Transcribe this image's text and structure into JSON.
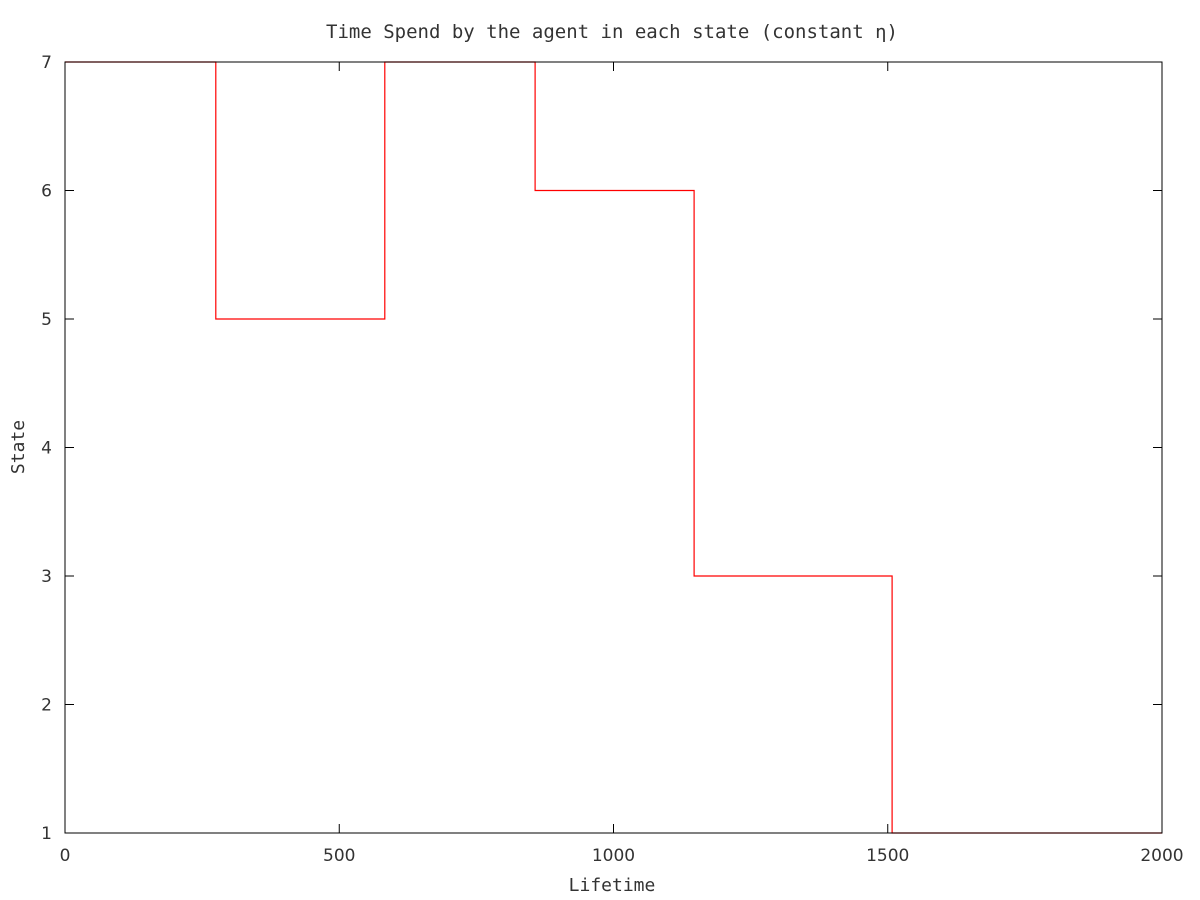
{
  "chart_data": {
    "type": "line",
    "step": true,
    "title": "Time Spend by the agent in each state (constant η)",
    "xlabel": "Lifetime",
    "ylabel": "State",
    "xlim": [
      0,
      2000
    ],
    "ylim": [
      1,
      7
    ],
    "xticks": [
      0,
      500,
      1000,
      1500,
      2000
    ],
    "yticks": [
      1,
      2,
      3,
      4,
      5,
      6,
      7
    ],
    "grid": false,
    "legend": "none",
    "series": [
      {
        "color": "#ff0000",
        "x": [
          0,
          275,
          275,
          583,
          583,
          857,
          857,
          1147,
          1147,
          1508,
          1508,
          2000
        ],
        "y": [
          7,
          7,
          5,
          5,
          7,
          7,
          6,
          6,
          3,
          3,
          1,
          1
        ]
      }
    ]
  }
}
